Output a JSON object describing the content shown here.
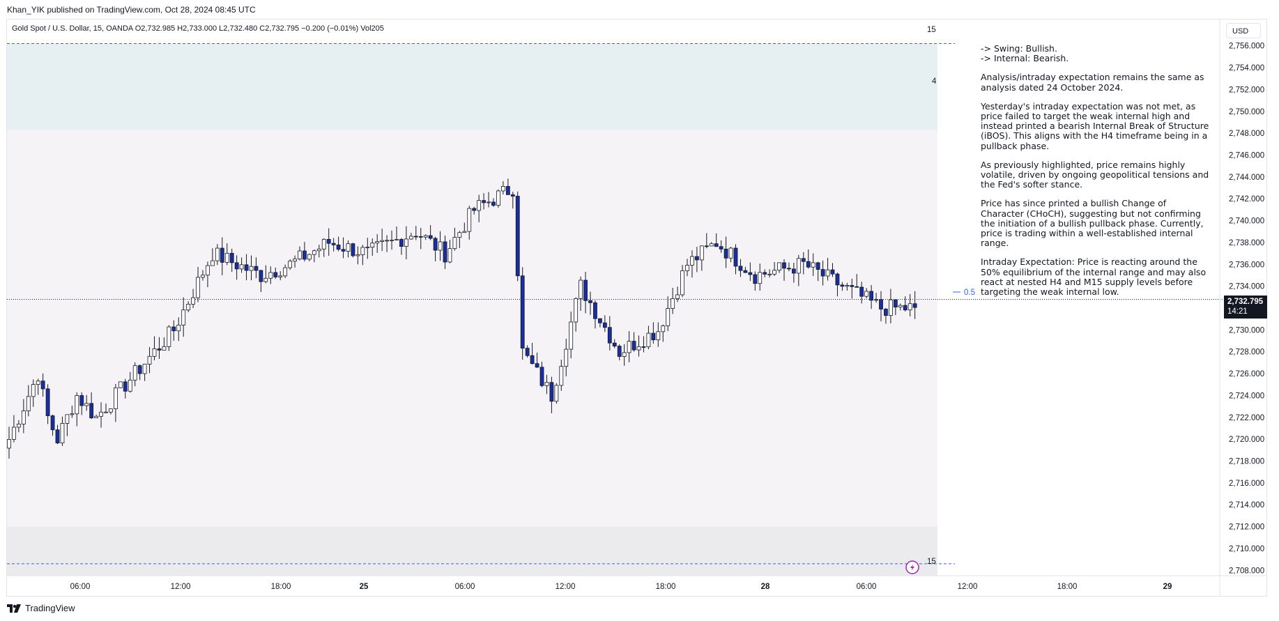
{
  "header": {
    "published_by": "Khan_YIK published on TradingView.com, Oct 28, 2024 08:45 UTC"
  },
  "legend": {
    "text": "Gold Spot / U.S. Dollar, 15, OANDA  O2,732.985  H2,733.000  L2,732.480  C2,732.795  −0.200 (−0.01%)  Vol205"
  },
  "currency_button": "USD",
  "last_price": {
    "price": "2,732.795",
    "countdown": "14:21"
  },
  "fib_label": "0.5",
  "zone_labels": {
    "top_15": "15",
    "top_4": "4",
    "bottom_15": "15"
  },
  "analysis": [
    "-> Swing:  Bullish.\n-> Internal:  Bearish.",
    "Analysis/intraday expectation remains the same as analysis dated 24 October 2024.",
    "Yesterday's intraday expectation was not met, as price failed to target the weak internal high and instead printed a bearish Internal Break of Structure (iBOS). This aligns with the H4 timeframe being in a pullback phase.",
    "As previously highlighted, price remains highly volatile, driven by ongoing geopolitical tensions and the Fed's softer stance.",
    "Price has since printed a bullish Change of Character (CHoCH), suggesting but not confirming the initiation of a bullish pullback phase. Currently, price is trading within a well-established internal range.",
    "Intraday Expectation: Price is reacting around the 50% equilibrium of the internal range and may also react at nested H4 and M15 supply levels before targeting the weak internal low."
  ],
  "footer": {
    "brand": "TradingView"
  },
  "colors": {
    "up": "#ffffff",
    "down": "#1a2ea0",
    "wick": "#131722",
    "premium_zone": "#e6f0f3",
    "range_zone": "#f5f3f5",
    "discount_zone": "#ebebee",
    "dashed": "#2962ff"
  },
  "chart_data": {
    "type": "candlestick",
    "symbol": "Gold Spot / U.S. Dollar",
    "interval": "15",
    "exchange": "OANDA",
    "ylim": [
      2707,
      2757
    ],
    "y_ticks": [
      "2,708.000",
      "2,710.000",
      "2,712.000",
      "2,714.000",
      "2,716.000",
      "2,718.000",
      "2,720.000",
      "2,722.000",
      "2,724.000",
      "2,726.000",
      "2,728.000",
      "2,730.000",
      "2,732.000",
      "2,734.000",
      "2,736.000",
      "2,738.000",
      "2,740.000",
      "2,742.000",
      "2,744.000",
      "2,746.000",
      "2,748.000",
      "2,750.000",
      "2,752.000",
      "2,754.000",
      "2,756.000"
    ],
    "x_ticks": [
      "06:00",
      "12:00",
      "18:00",
      "25",
      "06:00",
      "12:00",
      "18:00",
      "28",
      "06:00",
      "12:00",
      "18:00",
      "29"
    ],
    "zones": [
      {
        "name": "premium",
        "from": 2748.3,
        "to": 2756.2
      },
      {
        "name": "range",
        "from": 2712.0,
        "to": 2748.3
      },
      {
        "name": "discount",
        "from": 2707.5,
        "to": 2712.0
      }
    ],
    "dashed_levels": [
      2756.2,
      2708.6
    ],
    "fib_level": 2733.5,
    "last_close": 2732.795,
    "path": [
      2720,
      2726,
      2722,
      2720,
      2724,
      2722,
      2726,
      2730,
      2737,
      2735,
      2736,
      2738,
      2737,
      2739,
      2737,
      2741,
      2743,
      2728,
      2724,
      2734,
      2728,
      2730,
      2736,
      2738,
      2735,
      2736,
      2734,
      2732,
      2732,
      2728,
      2726,
      2727,
      2724,
      2726,
      2729,
      2727,
      2726,
      2732,
      2728,
      2726,
      2724,
      2720,
      2718,
      2720,
      2724,
      2730,
      2726,
      2730,
      2729,
      2738,
      2742,
      2737,
      2741,
      2744,
      2742,
      2746,
      2747,
      2735,
      2731,
      2738,
      2734,
      2729,
      2734,
      2733,
      2731,
      2730,
      2733,
      2741,
      2744,
      2737,
      2733
    ],
    "path_bars": [
      0,
      6,
      8,
      10,
      14,
      18,
      26,
      34,
      42,
      52,
      58,
      66,
      74,
      84,
      90,
      96,
      104,
      106,
      112,
      118,
      126,
      134,
      140,
      146,
      154,
      164,
      172,
      180,
      186,
      196,
      204,
      212,
      218,
      226,
      236,
      240,
      248,
      252,
      258,
      264,
      268,
      272,
      278,
      282,
      286,
      292,
      296,
      300,
      304,
      308,
      320,
      328,
      336,
      342,
      348,
      354,
      358,
      360,
      362,
      366,
      370,
      374,
      380,
      384,
      388,
      392,
      396,
      400,
      408,
      416,
      420
    ]
  }
}
